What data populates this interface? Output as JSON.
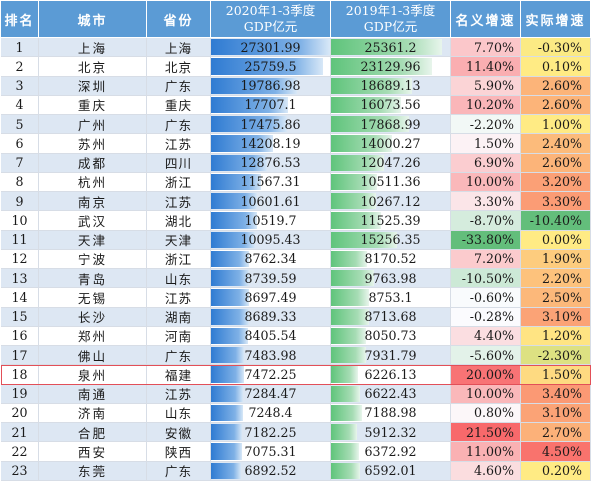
{
  "headers": {
    "rank": "排名",
    "city": "城市",
    "province": "省份",
    "gdp2020": [
      "2020年1-3季度",
      "GDP亿元"
    ],
    "gdp2019": [
      "2019年1-3季度",
      "GDP亿元"
    ],
    "nominal": "名义增速",
    "real": "实际增速"
  },
  "gdp_max": 27301.99,
  "highlight_rank": "18",
  "colors": {
    "header_bg": "#5b9bd5",
    "stripe_blue": "#dde7f3",
    "bar_2020": "#2f7bd2",
    "bar_2019": "#5fc47b",
    "highlight_border": "#e24f58"
  },
  "rows": [
    {
      "rank": "1",
      "city": "上海",
      "province": "上海",
      "g20": "27301.99",
      "g19": "25361.2",
      "nom": "7.70%",
      "real": "-0.30%"
    },
    {
      "rank": "2",
      "city": "北京",
      "province": "北京",
      "g20": "25759.5",
      "g19": "23129.96",
      "nom": "11.40%",
      "real": "0.10%"
    },
    {
      "rank": "3",
      "city": "深圳",
      "province": "广东",
      "g20": "19786.98",
      "g19": "18689.13",
      "nom": "5.90%",
      "real": "2.60%"
    },
    {
      "rank": "4",
      "city": "重庆",
      "province": "重庆",
      "g20": "17707.1",
      "g19": "16073.56",
      "nom": "10.20%",
      "real": "2.60%"
    },
    {
      "rank": "5",
      "city": "广州",
      "province": "广东",
      "g20": "17475.86",
      "g19": "17868.99",
      "nom": "-2.20%",
      "real": "1.00%"
    },
    {
      "rank": "6",
      "city": "苏州",
      "province": "江苏",
      "g20": "14208.19",
      "g19": "14000.27",
      "nom": "1.50%",
      "real": "2.40%"
    },
    {
      "rank": "7",
      "city": "成都",
      "province": "四川",
      "g20": "12876.53",
      "g19": "12047.26",
      "nom": "6.90%",
      "real": "2.60%"
    },
    {
      "rank": "8",
      "city": "杭州",
      "province": "浙江",
      "g20": "11567.31",
      "g19": "10511.36",
      "nom": "10.00%",
      "real": "3.20%"
    },
    {
      "rank": "9",
      "city": "南京",
      "province": "江苏",
      "g20": "10601.61",
      "g19": "10267.12",
      "nom": "3.30%",
      "real": "3.30%"
    },
    {
      "rank": "10",
      "city": "武汉",
      "province": "湖北",
      "g20": "10519.7",
      "g19": "11525.39",
      "nom": "-8.70%",
      "real": "-10.40%"
    },
    {
      "rank": "11",
      "city": "天津",
      "province": "天津",
      "g20": "10095.43",
      "g19": "15256.35",
      "nom": "-33.80%",
      "real": "0.00%"
    },
    {
      "rank": "12",
      "city": "宁波",
      "province": "浙江",
      "g20": "8762.34",
      "g19": "8170.52",
      "nom": "7.20%",
      "real": "1.90%"
    },
    {
      "rank": "13",
      "city": "青岛",
      "province": "山东",
      "g20": "8739.59",
      "g19": "9763.98",
      "nom": "-10.50%",
      "real": "2.20%"
    },
    {
      "rank": "14",
      "city": "无锡",
      "province": "江苏",
      "g20": "8697.49",
      "g19": "8753.1",
      "nom": "-0.60%",
      "real": "2.50%"
    },
    {
      "rank": "15",
      "city": "长沙",
      "province": "湖南",
      "g20": "8689.33",
      "g19": "8713.68",
      "nom": "-0.28%",
      "real": "3.10%"
    },
    {
      "rank": "16",
      "city": "郑州",
      "province": "河南",
      "g20": "8405.54",
      "g19": "8050.73",
      "nom": "4.40%",
      "real": "1.20%"
    },
    {
      "rank": "17",
      "city": "佛山",
      "province": "广东",
      "g20": "7483.98",
      "g19": "7931.79",
      "nom": "-5.60%",
      "real": "-2.30%"
    },
    {
      "rank": "18",
      "city": "泉州",
      "province": "福建",
      "g20": "7472.25",
      "g19": "6226.13",
      "nom": "20.00%",
      "real": "1.50%"
    },
    {
      "rank": "19",
      "city": "南通",
      "province": "江苏",
      "g20": "7284.47",
      "g19": "6622.43",
      "nom": "10.00%",
      "real": "3.40%"
    },
    {
      "rank": "20",
      "city": "济南",
      "province": "山东",
      "g20": "7248.4",
      "g19": "7188.98",
      "nom": "0.80%",
      "real": "3.10%"
    },
    {
      "rank": "21",
      "city": "合肥",
      "province": "安徽",
      "g20": "7182.25",
      "g19": "5912.32",
      "nom": "21.50%",
      "real": "2.70%"
    },
    {
      "rank": "22",
      "city": "西安",
      "province": "陕西",
      "g20": "7075.31",
      "g19": "6372.92",
      "nom": "11.00%",
      "real": "4.50%"
    },
    {
      "rank": "23",
      "city": "东莞",
      "province": "广东",
      "g20": "6892.52",
      "g19": "6592.01",
      "nom": "4.60%",
      "real": "0.20%"
    }
  ]
}
